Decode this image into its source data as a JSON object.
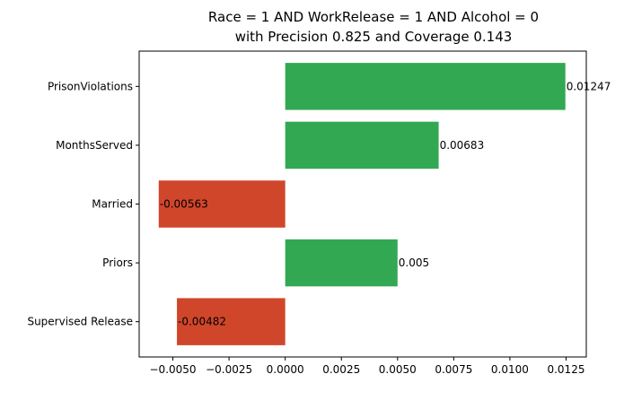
{
  "chart_data": {
    "type": "bar",
    "orientation": "horizontal",
    "title": [
      "Race = 1 AND WorkRelease = 1 AND Alcohol = 0",
      "with Precision 0.825 and Coverage 0.143"
    ],
    "xlabel": "",
    "ylabel": "",
    "categories": [
      "PrisonViolations",
      "MonthsServed",
      "Married",
      "Priors",
      "Supervised Release"
    ],
    "values": [
      0.01247,
      0.00683,
      -0.00563,
      0.005,
      -0.00482
    ],
    "value_labels": [
      "0.01247",
      "0.00683",
      "-0.00563",
      "0.005",
      "-0.00482"
    ],
    "xlim": [
      -0.0065,
      0.0134
    ],
    "xticks": [
      -0.005,
      -0.0025,
      0,
      0.0025,
      0.005,
      0.0075,
      0.01,
      0.0125
    ],
    "xtick_labels": [
      "−0.0050",
      "−0.0025",
      "0.0000",
      "0.0025",
      "0.0050",
      "0.0075",
      "0.0100",
      "0.0125"
    ],
    "grid": false,
    "colors": {
      "positive": "#33a853",
      "negative": "#d0462b"
    }
  }
}
